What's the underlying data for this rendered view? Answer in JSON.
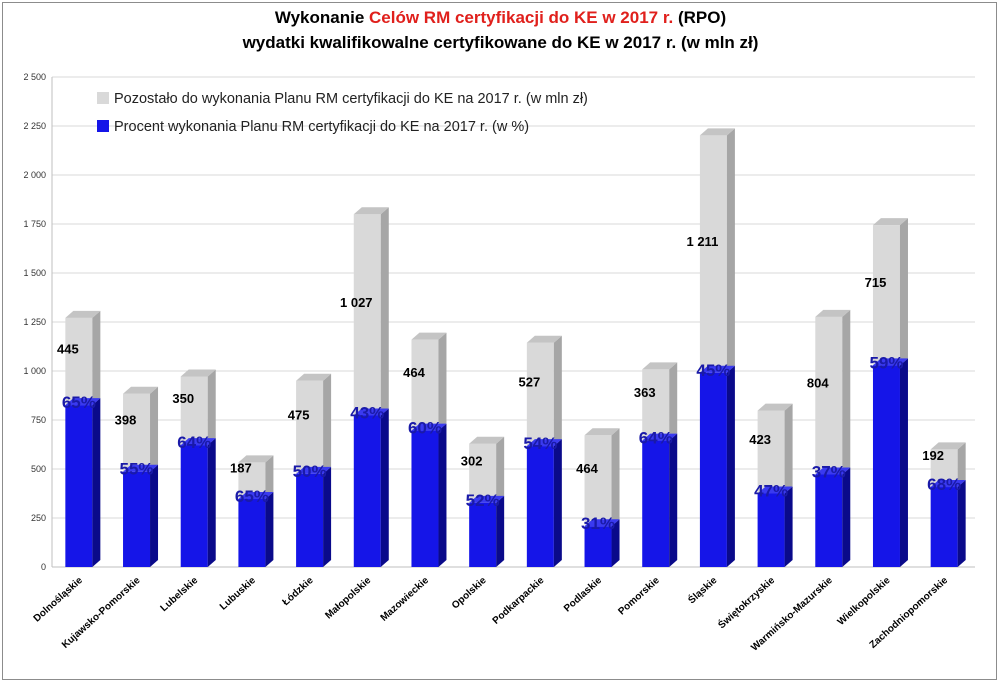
{
  "title": {
    "line1_a": "Wykonanie ",
    "line1_red": "Celów RM certyfikacji do KE w 2017 r.",
    "line1_b": " (RPO)",
    "line2": "wydatki  kwalifikowalne  certyfikowane  do  KE  w 2017  r.  (w mln zł)"
  },
  "colors": {
    "done": "#1515e8",
    "done_side": "#0a0a8a",
    "done_top": "#3a3af0",
    "remaining": "#d9d9d9",
    "remaining_side": "#a6a6a6",
    "remaining_top": "#c4c4c4",
    "grid": "#d9d9d9",
    "title_red": "#e0201c"
  },
  "chart_data": {
    "type": "bar",
    "stacked": true,
    "categories": [
      "Dolnośląskie",
      "Kujawsko-Pomorskie",
      "Lubelskie",
      "Lubuskie",
      "Łódzkie",
      "Małopolskie",
      "Mazowieckie",
      "Opolskie",
      "Podkarpackie",
      "Podlaskie",
      "Pomorskie",
      "Śląskie",
      "Świętokrzyskie",
      "Warmińsko-Mazurskie",
      "Wielkopolskie",
      "Zachodniopomorskie"
    ],
    "series": [
      {
        "name": "Procent wykonania Planu RM certyfikacji do KE na 2017 r. (w %)",
        "values": [
          826,
          486,
          622,
          347,
          475,
          773,
          696,
          327,
          617,
          208,
          645,
          991,
          375,
          472,
          1029,
          408
        ],
        "labels": [
          "65%",
          "55%",
          "64%",
          "65%",
          "50%",
          "43%",
          "60%",
          "52%",
          "54%",
          "31%",
          "64%",
          "45%",
          "47%",
          "37%",
          "59%",
          "68%"
        ]
      },
      {
        "name": "Pozostało do wykonania Planu RM certyfikacji do KE na 2017 r. (w mln zł)",
        "values": [
          445,
          398,
          350,
          187,
          475,
          1027,
          464,
          302,
          527,
          464,
          363,
          1211,
          423,
          804,
          715,
          192
        ],
        "labels": [
          "445",
          "398",
          "350",
          "187",
          "475",
          "1 027",
          "464",
          "302",
          "527",
          "464",
          "363",
          "1 211",
          "423",
          "804",
          "715",
          "192"
        ]
      }
    ],
    "ylim": [
      0,
      2500
    ],
    "yticks": [
      0,
      250,
      500,
      750,
      1000,
      1250,
      1500,
      1750,
      2000,
      2250,
      2500
    ],
    "ytick_labels": [
      "0",
      "250",
      "500",
      "750",
      "1 000",
      "1 250",
      "1 500",
      "1 750",
      "2 000",
      "2 250",
      "2 500"
    ],
    "grid": true,
    "legend_position": "top-left"
  }
}
